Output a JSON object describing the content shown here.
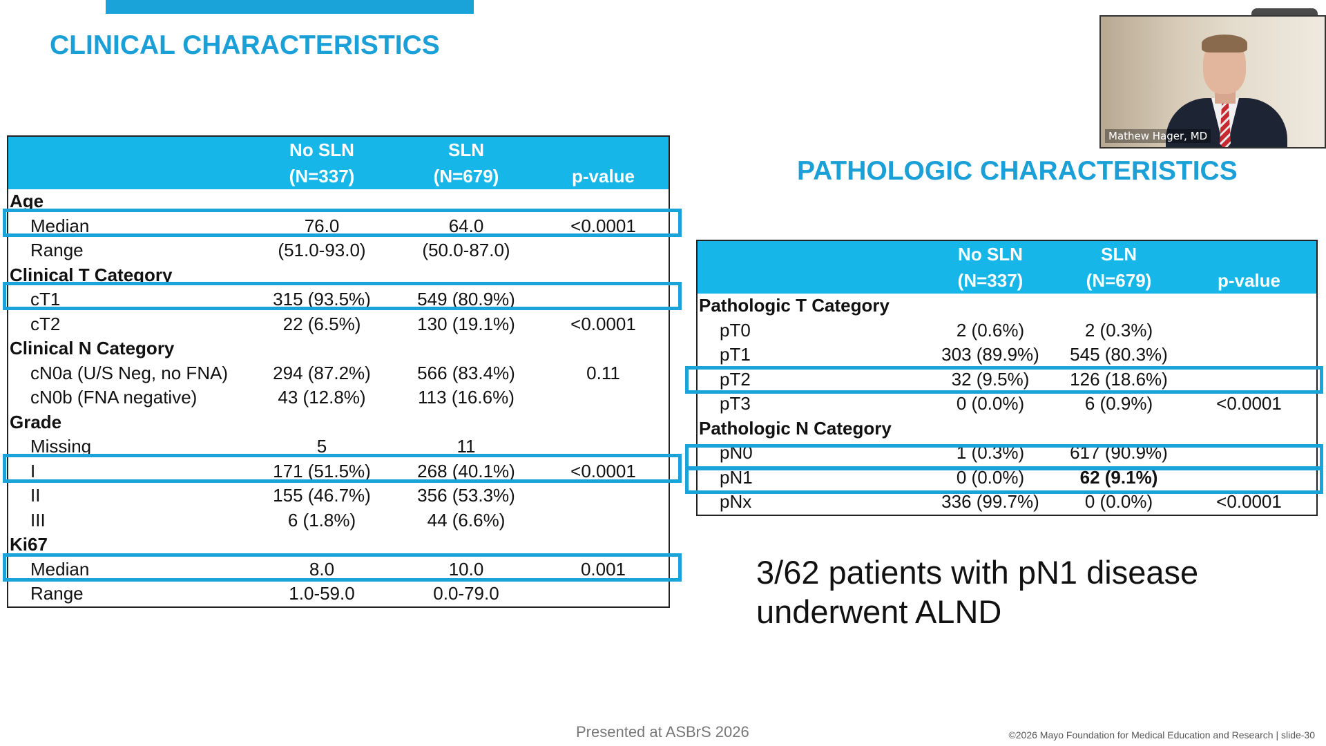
{
  "clinical": {
    "title": "CLINICAL CHARACTERISTICS",
    "columns": {
      "no_sln_line1": "No SLN",
      "no_sln_line2": "(N=337)",
      "sln_line1": "SLN",
      "sln_line2": "(N=679)",
      "pvalue": "p-value"
    },
    "rows": [
      {
        "label": "Age",
        "kind": "section"
      },
      {
        "label": "Median",
        "no_sln": "76.0",
        "sln": "64.0",
        "p": "<0.0001"
      },
      {
        "label": "Range",
        "no_sln": "(51.0-93.0)",
        "sln": "(50.0-87.0)",
        "p": ""
      },
      {
        "label": "Clinical T Category",
        "kind": "section"
      },
      {
        "label": "cT1",
        "no_sln": "315 (93.5%)",
        "sln": "549 (80.9%)",
        "p": ""
      },
      {
        "label": "cT2",
        "no_sln": "22 (6.5%)",
        "sln": "130 (19.1%)",
        "p": "<0.0001"
      },
      {
        "label": "Clinical N Category",
        "kind": "section"
      },
      {
        "label": "cN0a (U/S Neg, no FNA)",
        "no_sln": "294 (87.2%)",
        "sln": "566 (83.4%)",
        "p": "0.11"
      },
      {
        "label": "cN0b (FNA negative)",
        "no_sln": "43 (12.8%)",
        "sln": "113 (16.6%)",
        "p": ""
      },
      {
        "label": "Grade",
        "kind": "section"
      },
      {
        "label": "Missing",
        "no_sln": "5",
        "sln": "11",
        "p": ""
      },
      {
        "label": "I",
        "no_sln": "171 (51.5%)",
        "sln": "268 (40.1%)",
        "p": "<0.0001"
      },
      {
        "label": "II",
        "no_sln": "155 (46.7%)",
        "sln": "356 (53.3%)",
        "p": ""
      },
      {
        "label": "III",
        "no_sln": "6 (1.8%)",
        "sln": "44 (6.6%)",
        "p": ""
      },
      {
        "label": "Ki67",
        "kind": "section"
      },
      {
        "label": "Median",
        "no_sln": "8.0",
        "sln": "10.0",
        "p": "0.001"
      },
      {
        "label": "Range",
        "no_sln": "1.0-59.0",
        "sln": "0.0-79.0",
        "p": ""
      }
    ]
  },
  "pathologic": {
    "title": "PATHOLOGIC CHARACTERISTICS",
    "columns": {
      "no_sln_line1": "No SLN",
      "no_sln_line2": "(N=337)",
      "sln_line1": "SLN",
      "sln_line2": "(N=679)",
      "pvalue": "p-value"
    },
    "rows": [
      {
        "label": "Pathologic T Category",
        "kind": "section"
      },
      {
        "label": "pT0",
        "no_sln": "2 (0.6%)",
        "sln": "2 (0.3%)",
        "p": ""
      },
      {
        "label": "pT1",
        "no_sln": "303 (89.9%)",
        "sln": "545 (80.3%)",
        "p": ""
      },
      {
        "label": "pT2",
        "no_sln": "32 (9.5%)",
        "sln": "126 (18.6%)",
        "p": ""
      },
      {
        "label": "pT3",
        "no_sln": "0 (0.0%)",
        "sln": "6 (0.9%)",
        "p": "<0.0001"
      },
      {
        "label": "Pathologic N Category",
        "kind": "section"
      },
      {
        "label": "pN0",
        "no_sln": "1 (0.3%)",
        "sln": "617 (90.9%)",
        "p": ""
      },
      {
        "label": "pN1",
        "no_sln": "0 (0.0%)",
        "sln": "62 (9.1%)",
        "p": "",
        "sln_bold": true
      },
      {
        "label": "pNx",
        "no_sln": "336 (99.7%)",
        "sln": "0 (0.0%)",
        "p": "<0.0001"
      }
    ]
  },
  "note": {
    "line1": "3/62 patients with pN1 disease",
    "line2": "underwent ALND"
  },
  "footer": {
    "presented": "Presented at ASBrS 2026",
    "copyright": "©2026 Mayo Foundation for Medical Education and Research  |  slide-30"
  },
  "video": {
    "participant_name": "Mathew Hager, MD"
  },
  "colors": {
    "title": "#1a9fd6",
    "header_fill": "#16b6e8",
    "highlight": "#1aa3d8"
  }
}
